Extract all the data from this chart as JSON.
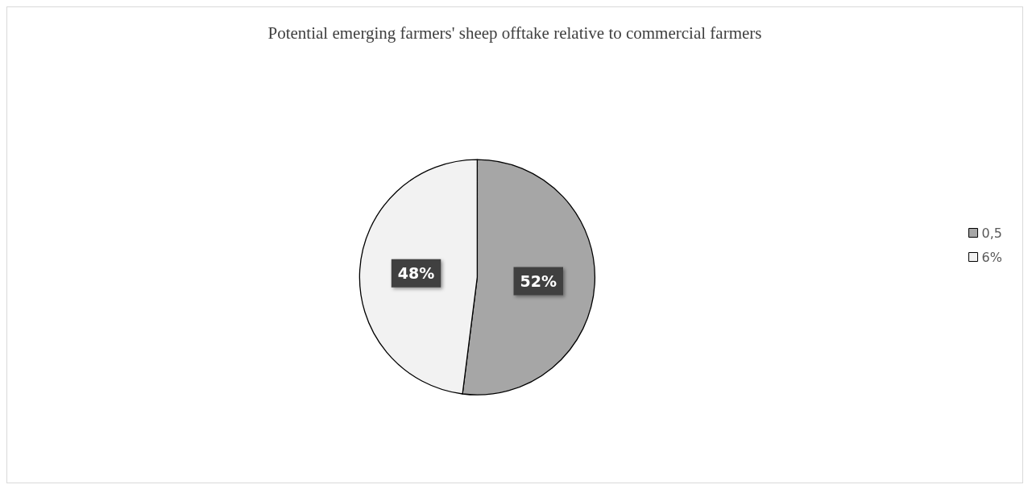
{
  "chart_data": {
    "type": "pie",
    "title": "Potential emerging farmers' sheep offtake relative to commercial farmers",
    "categories": [
      "0,5",
      "6%"
    ],
    "values": [
      52,
      48
    ],
    "colors": [
      "#a6a6a6",
      "#f2f2f2"
    ],
    "value_labels": [
      "52%",
      "48%"
    ],
    "legend": "right"
  }
}
